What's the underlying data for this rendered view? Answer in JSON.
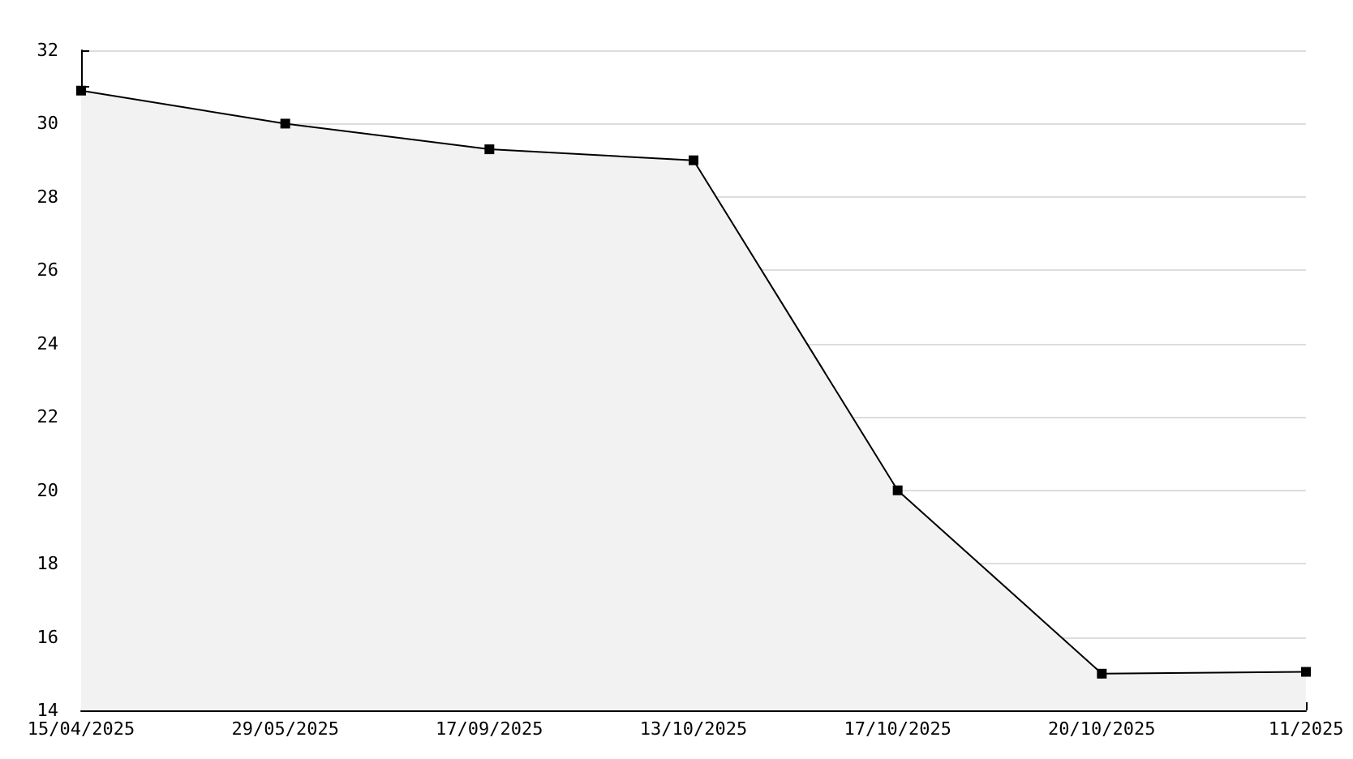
{
  "chart_data": {
    "type": "area",
    "categories": [
      "15/04/2025",
      "29/05/2025",
      "17/09/2025",
      "13/10/2025",
      "17/10/2025",
      "20/10/2025",
      "11/2025"
    ],
    "series": [
      {
        "color": "#000000",
        "values": [
          30.9,
          30.0,
          29.3,
          29.0,
          20.0,
          15.0,
          15.05
        ]
      }
    ],
    "ylim": [
      14,
      32
    ],
    "yticks": [
      14,
      {
        "value": 15,
        "label": null
      },
      16,
      {
        "value": 17,
        "label": null
      },
      18,
      {
        "value": 19,
        "label": null
      },
      20,
      {
        "value": 21,
        "label": null
      },
      22,
      {
        "value": 23,
        "label": null
      },
      24,
      {
        "value": 25,
        "label": null
      },
      26,
      {
        "value": 27,
        "label": null
      },
      28,
      {
        "value": 29,
        "label": null
      },
      30,
      {
        "value": 31,
        "label": null
      },
      32
    ],
    "grid": "y",
    "marker": "square",
    "line_style": "solid"
  }
}
